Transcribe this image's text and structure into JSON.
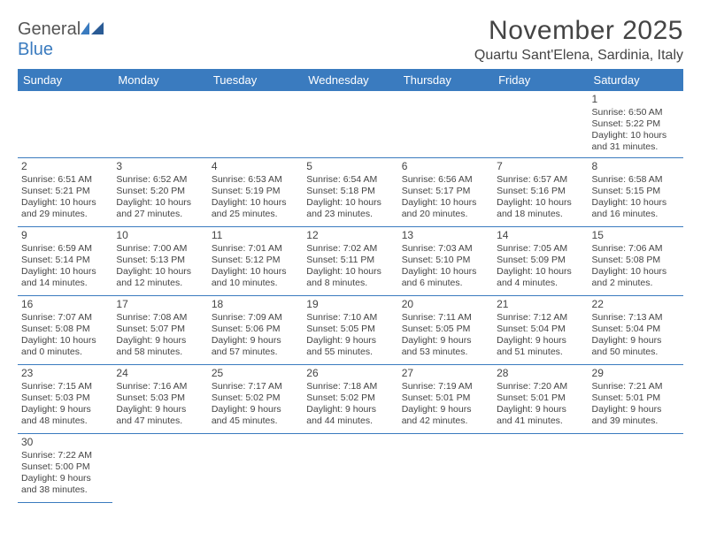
{
  "logo": {
    "general": "General",
    "blue": "Blue"
  },
  "title": "November 2025",
  "location": "Quartu Sant'Elena, Sardinia, Italy",
  "headers": [
    "Sunday",
    "Monday",
    "Tuesday",
    "Wednesday",
    "Thursday",
    "Friday",
    "Saturday"
  ],
  "weeks": [
    [
      null,
      null,
      null,
      null,
      null,
      null,
      {
        "n": "1",
        "sr": "Sunrise: 6:50 AM",
        "ss": "Sunset: 5:22 PM",
        "d1": "Daylight: 10 hours",
        "d2": "and 31 minutes."
      }
    ],
    [
      {
        "n": "2",
        "sr": "Sunrise: 6:51 AM",
        "ss": "Sunset: 5:21 PM",
        "d1": "Daylight: 10 hours",
        "d2": "and 29 minutes."
      },
      {
        "n": "3",
        "sr": "Sunrise: 6:52 AM",
        "ss": "Sunset: 5:20 PM",
        "d1": "Daylight: 10 hours",
        "d2": "and 27 minutes."
      },
      {
        "n": "4",
        "sr": "Sunrise: 6:53 AM",
        "ss": "Sunset: 5:19 PM",
        "d1": "Daylight: 10 hours",
        "d2": "and 25 minutes."
      },
      {
        "n": "5",
        "sr": "Sunrise: 6:54 AM",
        "ss": "Sunset: 5:18 PM",
        "d1": "Daylight: 10 hours",
        "d2": "and 23 minutes."
      },
      {
        "n": "6",
        "sr": "Sunrise: 6:56 AM",
        "ss": "Sunset: 5:17 PM",
        "d1": "Daylight: 10 hours",
        "d2": "and 20 minutes."
      },
      {
        "n": "7",
        "sr": "Sunrise: 6:57 AM",
        "ss": "Sunset: 5:16 PM",
        "d1": "Daylight: 10 hours",
        "d2": "and 18 minutes."
      },
      {
        "n": "8",
        "sr": "Sunrise: 6:58 AM",
        "ss": "Sunset: 5:15 PM",
        "d1": "Daylight: 10 hours",
        "d2": "and 16 minutes."
      }
    ],
    [
      {
        "n": "9",
        "sr": "Sunrise: 6:59 AM",
        "ss": "Sunset: 5:14 PM",
        "d1": "Daylight: 10 hours",
        "d2": "and 14 minutes."
      },
      {
        "n": "10",
        "sr": "Sunrise: 7:00 AM",
        "ss": "Sunset: 5:13 PM",
        "d1": "Daylight: 10 hours",
        "d2": "and 12 minutes."
      },
      {
        "n": "11",
        "sr": "Sunrise: 7:01 AM",
        "ss": "Sunset: 5:12 PM",
        "d1": "Daylight: 10 hours",
        "d2": "and 10 minutes."
      },
      {
        "n": "12",
        "sr": "Sunrise: 7:02 AM",
        "ss": "Sunset: 5:11 PM",
        "d1": "Daylight: 10 hours",
        "d2": "and 8 minutes."
      },
      {
        "n": "13",
        "sr": "Sunrise: 7:03 AM",
        "ss": "Sunset: 5:10 PM",
        "d1": "Daylight: 10 hours",
        "d2": "and 6 minutes."
      },
      {
        "n": "14",
        "sr": "Sunrise: 7:05 AM",
        "ss": "Sunset: 5:09 PM",
        "d1": "Daylight: 10 hours",
        "d2": "and 4 minutes."
      },
      {
        "n": "15",
        "sr": "Sunrise: 7:06 AM",
        "ss": "Sunset: 5:08 PM",
        "d1": "Daylight: 10 hours",
        "d2": "and 2 minutes."
      }
    ],
    [
      {
        "n": "16",
        "sr": "Sunrise: 7:07 AM",
        "ss": "Sunset: 5:08 PM",
        "d1": "Daylight: 10 hours",
        "d2": "and 0 minutes."
      },
      {
        "n": "17",
        "sr": "Sunrise: 7:08 AM",
        "ss": "Sunset: 5:07 PM",
        "d1": "Daylight: 9 hours",
        "d2": "and 58 minutes."
      },
      {
        "n": "18",
        "sr": "Sunrise: 7:09 AM",
        "ss": "Sunset: 5:06 PM",
        "d1": "Daylight: 9 hours",
        "d2": "and 57 minutes."
      },
      {
        "n": "19",
        "sr": "Sunrise: 7:10 AM",
        "ss": "Sunset: 5:05 PM",
        "d1": "Daylight: 9 hours",
        "d2": "and 55 minutes."
      },
      {
        "n": "20",
        "sr": "Sunrise: 7:11 AM",
        "ss": "Sunset: 5:05 PM",
        "d1": "Daylight: 9 hours",
        "d2": "and 53 minutes."
      },
      {
        "n": "21",
        "sr": "Sunrise: 7:12 AM",
        "ss": "Sunset: 5:04 PM",
        "d1": "Daylight: 9 hours",
        "d2": "and 51 minutes."
      },
      {
        "n": "22",
        "sr": "Sunrise: 7:13 AM",
        "ss": "Sunset: 5:04 PM",
        "d1": "Daylight: 9 hours",
        "d2": "and 50 minutes."
      }
    ],
    [
      {
        "n": "23",
        "sr": "Sunrise: 7:15 AM",
        "ss": "Sunset: 5:03 PM",
        "d1": "Daylight: 9 hours",
        "d2": "and 48 minutes."
      },
      {
        "n": "24",
        "sr": "Sunrise: 7:16 AM",
        "ss": "Sunset: 5:03 PM",
        "d1": "Daylight: 9 hours",
        "d2": "and 47 minutes."
      },
      {
        "n": "25",
        "sr": "Sunrise: 7:17 AM",
        "ss": "Sunset: 5:02 PM",
        "d1": "Daylight: 9 hours",
        "d2": "and 45 minutes."
      },
      {
        "n": "26",
        "sr": "Sunrise: 7:18 AM",
        "ss": "Sunset: 5:02 PM",
        "d1": "Daylight: 9 hours",
        "d2": "and 44 minutes."
      },
      {
        "n": "27",
        "sr": "Sunrise: 7:19 AM",
        "ss": "Sunset: 5:01 PM",
        "d1": "Daylight: 9 hours",
        "d2": "and 42 minutes."
      },
      {
        "n": "28",
        "sr": "Sunrise: 7:20 AM",
        "ss": "Sunset: 5:01 PM",
        "d1": "Daylight: 9 hours",
        "d2": "and 41 minutes."
      },
      {
        "n": "29",
        "sr": "Sunrise: 7:21 AM",
        "ss": "Sunset: 5:01 PM",
        "d1": "Daylight: 9 hours",
        "d2": "and 39 minutes."
      }
    ],
    [
      {
        "n": "30",
        "sr": "Sunrise: 7:22 AM",
        "ss": "Sunset: 5:00 PM",
        "d1": "Daylight: 9 hours",
        "d2": "and 38 minutes."
      },
      null,
      null,
      null,
      null,
      null,
      null
    ]
  ],
  "colors": {
    "header_bg": "#3a7bbf",
    "border": "#3a7bbf",
    "text": "#444444"
  }
}
